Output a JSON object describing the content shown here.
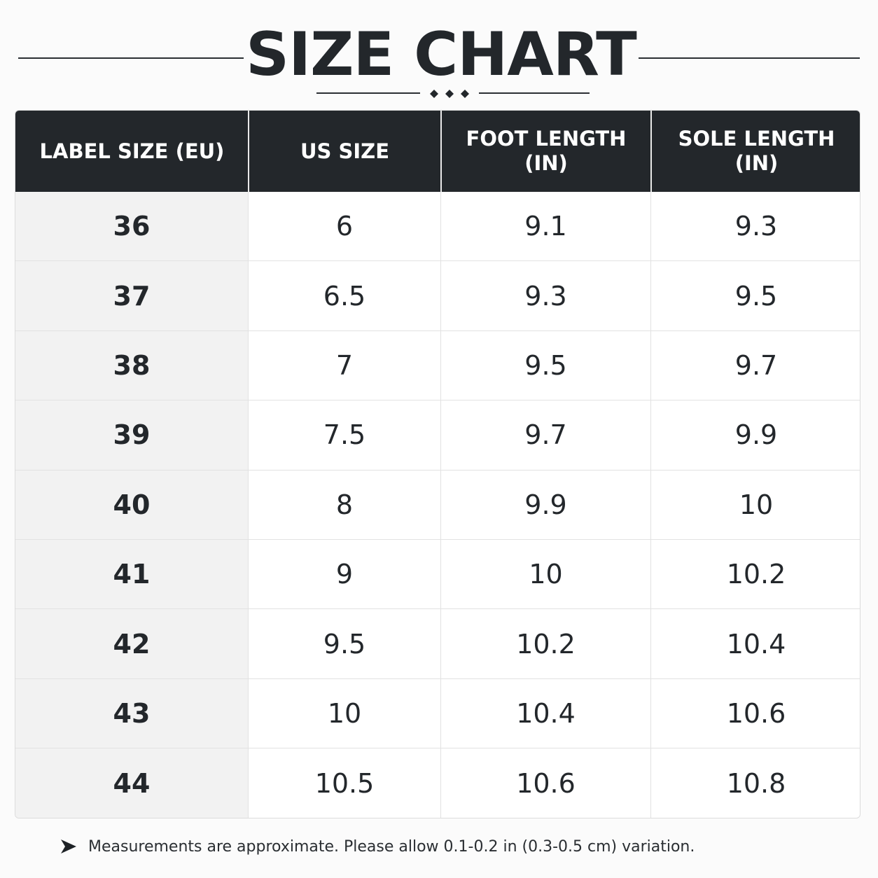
{
  "title": "SIZE CHART",
  "table": {
    "headers": [
      {
        "line1": "LABEL SIZE (EU)",
        "line2": ""
      },
      {
        "line1": "US SIZE",
        "line2": ""
      },
      {
        "line1": "FOOT LENGTH",
        "line2": "(IN)"
      },
      {
        "line1": "SOLE LENGTH",
        "line2": "(IN)"
      }
    ],
    "rows": [
      [
        "36",
        "6",
        "9.1",
        "9.3"
      ],
      [
        "37",
        "6.5",
        "9.3",
        "9.5"
      ],
      [
        "38",
        "7",
        "9.5",
        "9.7"
      ],
      [
        "39",
        "7.5",
        "9.7",
        "9.9"
      ],
      [
        "40",
        "8",
        "9.9",
        "10"
      ],
      [
        "41",
        "9",
        "10",
        "10.2"
      ],
      [
        "42",
        "9.5",
        "10.2",
        "10.4"
      ],
      [
        "43",
        "10",
        "10.4",
        "10.6"
      ],
      [
        "44",
        "10.5",
        "10.6",
        "10.8"
      ]
    ]
  },
  "note": {
    "icon": "arrow-right-icon",
    "text": "Measurements are approximate. Please allow 0.1-0.2 in (0.3-0.5 cm) variation."
  },
  "colors": {
    "header_bg": "#23272b",
    "first_column_bg": "#f2f2f2",
    "text": "#23272b"
  }
}
